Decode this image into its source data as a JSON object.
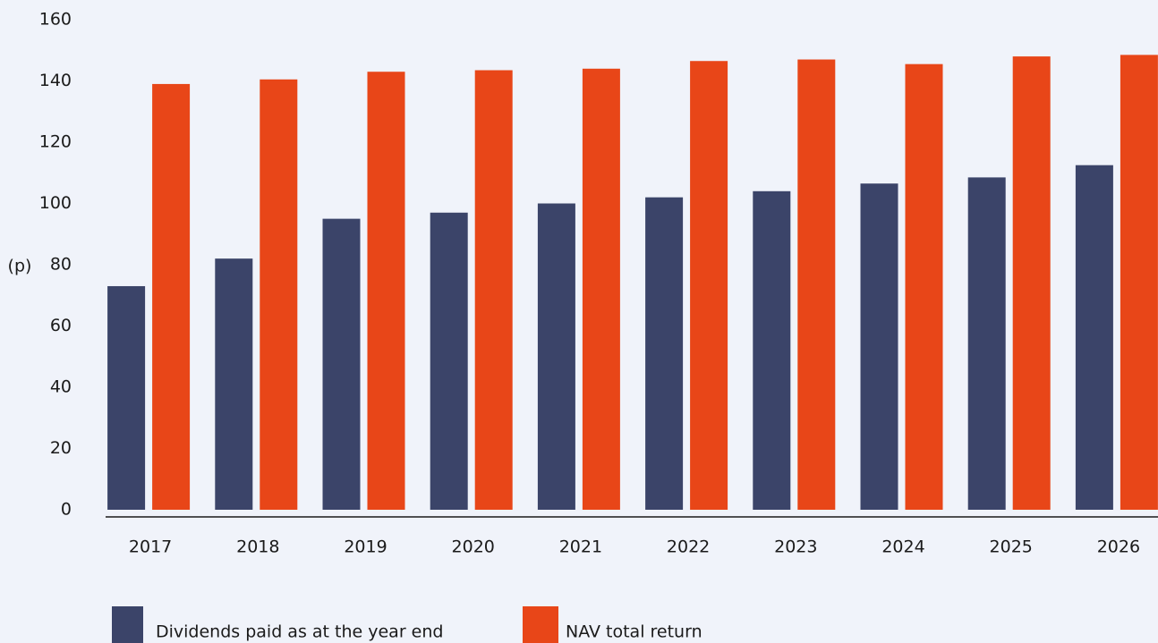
{
  "chart_data": {
    "type": "bar",
    "y_label": "(p)",
    "categories": [
      "2017",
      "2018",
      "2019",
      "2020",
      "2021",
      "2022",
      "2023",
      "2024",
      "2025",
      "2026"
    ],
    "series": [
      {
        "name": "Dividends paid as at the year end",
        "color": "#3b4469",
        "values": [
          73,
          82,
          95,
          97,
          100,
          102,
          104,
          106.5,
          108.5,
          112.5
        ]
      },
      {
        "name": "NAV total return",
        "color": "#e84618",
        "values": [
          139,
          140.5,
          143,
          143.5,
          144,
          146.5,
          147,
          145.5,
          148,
          148.5
        ]
      }
    ],
    "ylim": [
      0,
      160
    ],
    "yticks": [
      0,
      20,
      40,
      60,
      80,
      100,
      120,
      140,
      160
    ],
    "grid": false
  }
}
